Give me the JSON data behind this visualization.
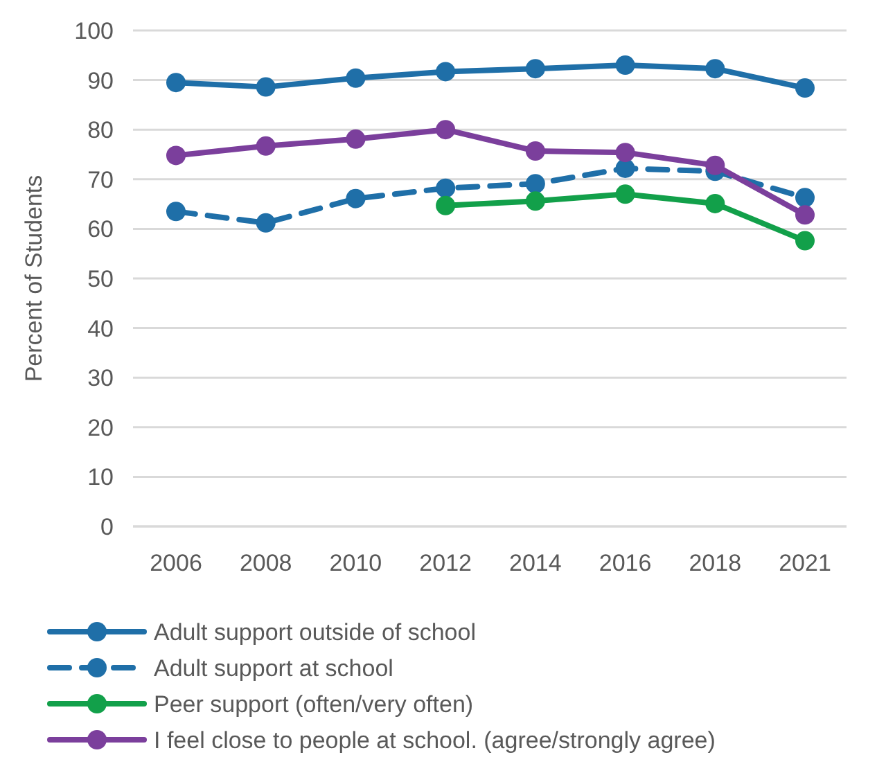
{
  "chart_data": {
    "type": "line",
    "ylabel": "Percent of Students",
    "categories": [
      "2006",
      "2008",
      "2010",
      "2012",
      "2014",
      "2016",
      "2018",
      "2021"
    ],
    "ylim": [
      0,
      100
    ],
    "yticks": [
      0,
      10,
      20,
      30,
      40,
      50,
      60,
      70,
      80,
      90,
      100
    ],
    "grid": "y",
    "legend": "bottom",
    "marker": "circle",
    "series": [
      {
        "name": "Adult support outside of school",
        "color": "#1f6fa8",
        "values": [
          89.5,
          88.6,
          90.4,
          91.7,
          92.3,
          93,
          92.3,
          88.4
        ]
      },
      {
        "name": "Adult support at school",
        "color": "#1f6fa8",
        "line_style": "dashed",
        "values": [
          63.5,
          61.2,
          66.1,
          68.2,
          69.1,
          72.2,
          71.6,
          66.3
        ]
      },
      {
        "name": "Peer support (often/very often)",
        "color": "#12a04a",
        "values": [
          null,
          null,
          null,
          64.7,
          65.6,
          67,
          65.1,
          57.6
        ]
      },
      {
        "name": "I feel close to people at school. (agree/strongly agree)",
        "color": "#7b3f9c",
        "values": [
          74.8,
          76.7,
          78.1,
          80,
          75.7,
          75.4,
          72.8,
          62.8
        ]
      }
    ]
  }
}
